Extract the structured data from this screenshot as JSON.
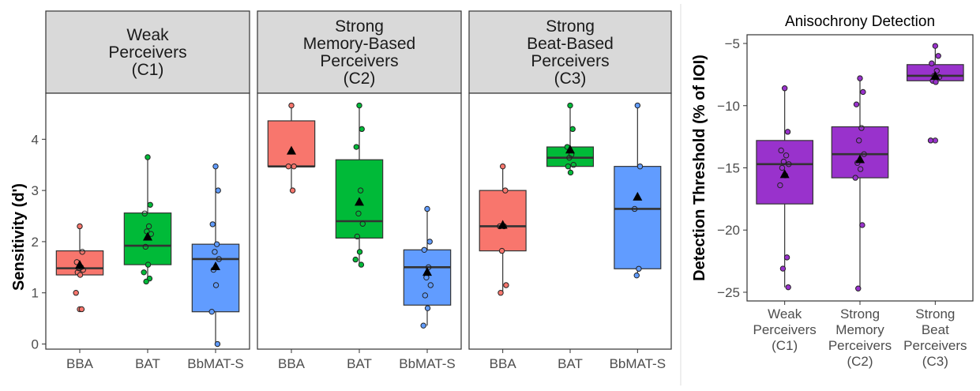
{
  "chart_data": [
    {
      "type": "boxplot",
      "title": "",
      "xlabel": "",
      "ylabel": "Sensitivity (d')",
      "ylim": [
        -0.1,
        4.9
      ],
      "yticks": [
        0,
        1,
        2,
        3,
        4
      ],
      "colors": {
        "BBA": "#F8766D",
        "BAT": "#00BA38",
        "BbMAT-S": "#619CFF"
      },
      "facets": [
        {
          "strip": [
            "Weak",
            "Perceivers",
            "(C1)"
          ],
          "categories": [
            "BBA",
            "BAT",
            "BbMAT-S"
          ],
          "boxes": [
            {
              "name": "BBA",
              "min": 1.35,
              "q1": 1.35,
              "median": 1.48,
              "q3": 1.82,
              "max": 2.3,
              "mean": 1.55,
              "outliers": [
                0.68
              ],
              "points": [
                2.3,
                1.8,
                1.6,
                1.5,
                1.48,
                1.45,
                1.4,
                1.35,
                1.0,
                0.68
              ]
            },
            {
              "name": "BAT",
              "min": 1.22,
              "q1": 1.55,
              "median": 1.92,
              "q3": 2.56,
              "max": 3.65,
              "mean": 2.1,
              "outliers": [],
              "points": [
                3.65,
                2.72,
                2.55,
                2.3,
                2.2,
                2.15,
                1.9,
                1.55,
                1.4,
                1.28,
                1.22
              ]
            },
            {
              "name": "BbMAT-S",
              "min": 0.0,
              "q1": 0.63,
              "median": 1.66,
              "q3": 1.95,
              "max": 3.47,
              "mean": 1.52,
              "outliers": [],
              "points": [
                3.47,
                3.0,
                2.34,
                1.95,
                1.8,
                1.66,
                1.45,
                1.15,
                0.63,
                0.0
              ]
            }
          ]
        },
        {
          "strip": [
            "Strong",
            "Memory-Based",
            "Perceivers",
            "(C2)"
          ],
          "categories": [
            "BBA",
            "BAT",
            "BbMAT-S"
          ],
          "boxes": [
            {
              "name": "BBA",
              "min": 3.0,
              "q1": 3.47,
              "median": 3.47,
              "q3": 4.36,
              "max": 4.66,
              "mean": 3.78,
              "outliers": [],
              "points": [
                4.66,
                3.47,
                3.47,
                3.0
              ]
            },
            {
              "name": "BAT",
              "min": 1.55,
              "q1": 2.07,
              "median": 2.4,
              "q3": 3.6,
              "max": 4.66,
              "mean": 2.78,
              "outliers": [],
              "points": [
                4.66,
                4.2,
                3.85,
                3.0,
                2.55,
                2.35,
                2.1,
                1.8,
                1.65,
                1.55
              ]
            },
            {
              "name": "BbMAT-S",
              "min": 0.36,
              "q1": 0.76,
              "median": 1.5,
              "q3": 1.84,
              "max": 2.64,
              "mean": 1.41,
              "outliers": [],
              "points": [
                2.64,
                2.0,
                1.84,
                1.5,
                1.3,
                1.15,
                0.95,
                0.7,
                0.36
              ]
            }
          ]
        },
        {
          "strip": [
            "Strong",
            "Beat-Based",
            "Perceivers",
            "(C3)"
          ],
          "categories": [
            "BBA",
            "BAT",
            "BbMAT-S"
          ],
          "boxes": [
            {
              "name": "BBA",
              "min": 1.0,
              "q1": 1.82,
              "median": 2.3,
              "q3": 3.0,
              "max": 3.47,
              "mean": 2.33,
              "outliers": [],
              "points": [
                3.47,
                3.0,
                2.3,
                2.3,
                1.82,
                1.15,
                1.0
              ]
            },
            {
              "name": "BAT",
              "min": 3.35,
              "q1": 3.47,
              "median": 3.64,
              "q3": 3.85,
              "max": 4.66,
              "mean": 3.8,
              "outliers": [],
              "points": [
                4.66,
                4.2,
                3.85,
                3.7,
                3.64,
                3.5,
                3.47,
                3.35
              ]
            },
            {
              "name": "BbMAT-S",
              "min": 1.34,
              "q1": 1.47,
              "median": 2.64,
              "q3": 3.47,
              "max": 4.66,
              "mean": 2.88,
              "outliers": [],
              "points": [
                4.66,
                3.47,
                2.64,
                1.47,
                1.34
              ]
            }
          ]
        }
      ]
    },
    {
      "type": "boxplot",
      "title": "Anisochrony Detection",
      "xlabel": "",
      "ylabel": "Detection Threshold (% of IOI)",
      "ylim": [
        -25.7,
        -4.3
      ],
      "yticks": [
        -25,
        -20,
        -15,
        -10,
        -5
      ],
      "color": "#9932CC",
      "categories": [
        [
          "Weak",
          "Perceivers",
          "(C1)"
        ],
        [
          "Strong",
          "Memory",
          "Perceivers",
          "(C2)"
        ],
        [
          "Strong",
          "Beat",
          "Perceivers",
          "(C3)"
        ]
      ],
      "boxes": [
        {
          "name": "C1",
          "min": -24.6,
          "q1": -17.9,
          "median": -14.7,
          "q3": -12.8,
          "max": -8.6,
          "mean": -15.5,
          "outliers": [],
          "points": [
            -8.6,
            -12.1,
            -13.6,
            -14.0,
            -14.5,
            -14.7,
            -15.0,
            -15.6,
            -16.4,
            -22.2,
            -23.1,
            -24.6
          ]
        },
        {
          "name": "C2",
          "min": -24.7,
          "q1": -15.8,
          "median": -13.9,
          "q3": -11.7,
          "max": -7.8,
          "mean": -14.3,
          "outliers": [],
          "points": [
            -7.8,
            -8.9,
            -9.9,
            -11.8,
            -12.8,
            -13.9,
            -14.6,
            -15.1,
            -15.8,
            -19.6,
            -24.7
          ]
        },
        {
          "name": "C3",
          "min": -8.1,
          "q1": -8.0,
          "median": -7.6,
          "q3": -6.7,
          "max": -5.2,
          "mean": -7.6,
          "outliers": [
            -12.8
          ],
          "points": [
            -5.2,
            -6.0,
            -6.6,
            -7.2,
            -7.6,
            -7.7,
            -8.0,
            -8.1,
            -12.8
          ]
        }
      ]
    }
  ]
}
